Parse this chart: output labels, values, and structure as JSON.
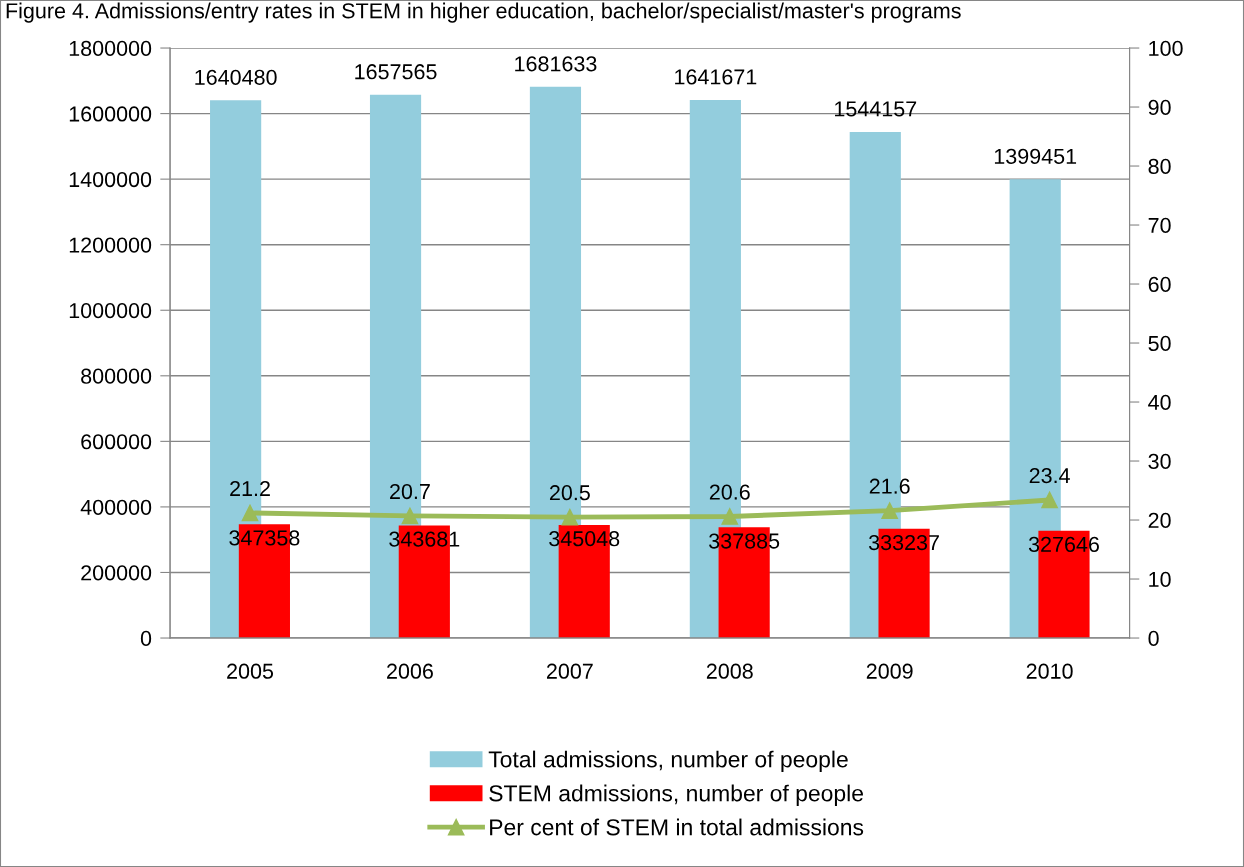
{
  "chart_data": {
    "type": "bar",
    "title": "Figure 4. Admissions/entry rates in STEM in higher education, bachelor/specialist/master's programs",
    "categories": [
      "2005",
      "2006",
      "2007",
      "2008",
      "2009",
      "2010"
    ],
    "series": [
      {
        "name": "Total admissions, number of people",
        "color": "#93cddd",
        "values": [
          1640480,
          1657565,
          1681633,
          1641671,
          1544157,
          1399451
        ]
      },
      {
        "name": "STEM admissions, number of people",
        "color": "#ff0000",
        "values": [
          347358,
          343681,
          345048,
          337885,
          333237,
          327646
        ]
      },
      {
        "name": "Per cent of STEM in total admissions",
        "type": "line",
        "axis": "y2",
        "color": "#9bbb59",
        "marker": "triangle",
        "values": [
          21.2,
          20.7,
          20.5,
          20.6,
          21.6,
          23.4
        ]
      }
    ],
    "ylim": [
      0,
      1800000
    ],
    "yticks": [
      0,
      200000,
      400000,
      600000,
      800000,
      1000000,
      1200000,
      1400000,
      1600000,
      1800000
    ],
    "y2lim": [
      0,
      100
    ],
    "y2ticks": [
      0,
      10,
      20,
      30,
      40,
      50,
      60,
      70,
      80,
      90,
      100
    ],
    "grid": "y",
    "legend": "bottom",
    "data_labels": true
  }
}
